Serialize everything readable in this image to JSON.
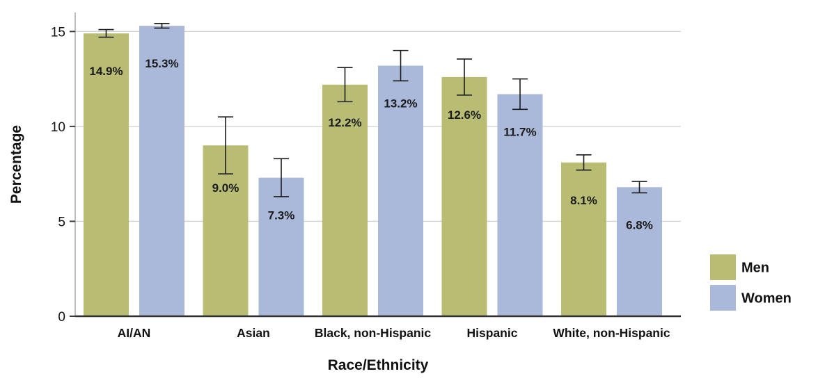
{
  "chart_data": {
    "type": "bar",
    "title": "",
    "xlabel": "Race/Ethnicity",
    "ylabel": "Percentage",
    "ylim": [
      0,
      16
    ],
    "yticks": [
      0,
      5,
      10,
      15
    ],
    "grid": true,
    "legend_position": "right",
    "categories": [
      "AI/AN",
      "Asian",
      "Black, non-Hispanic",
      "Hispanic",
      "White, non-Hispanic"
    ],
    "series": [
      {
        "name": "Men",
        "color": "#b9bd73",
        "values": [
          14.9,
          9.0,
          12.2,
          12.6,
          8.1
        ],
        "labels": [
          "14.9%",
          "9.0%",
          "12.2%",
          "12.6%",
          "8.1%"
        ],
        "error": [
          0.2,
          1.5,
          0.9,
          0.95,
          0.4
        ]
      },
      {
        "name": "Women",
        "color": "#aab9da",
        "values": [
          15.3,
          7.3,
          13.2,
          11.7,
          6.8
        ],
        "labels": [
          "15.3%",
          "7.3%",
          "13.2%",
          "11.7%",
          "6.8%"
        ],
        "error": [
          0.12,
          1.0,
          0.8,
          0.8,
          0.3
        ]
      }
    ],
    "error_bar_color": "#1a1a1a",
    "gridline_color": "#d0d0d0",
    "axis_line_color": "#2f2f2f"
  }
}
